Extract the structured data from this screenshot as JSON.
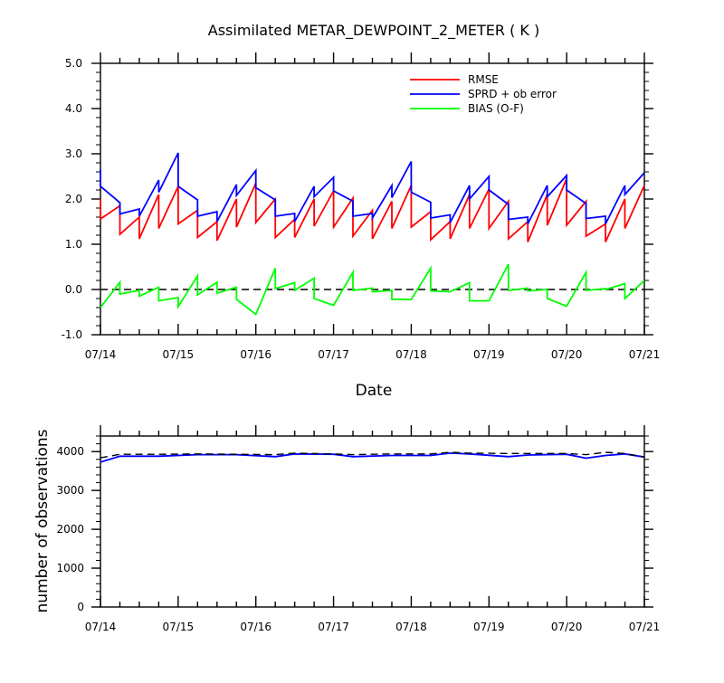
{
  "chart_data": [
    {
      "type": "line",
      "title": "Assimilated METAR_DEWPOINT_2_METER ( K )",
      "xlabel": "Date",
      "ylabel": "",
      "xlim": [
        "07/14 00",
        "07/21 00"
      ],
      "ylim": [
        -1.0,
        5.0
      ],
      "x_tick_labels": [
        "07/14",
        "07/15",
        "07/16",
        "07/17",
        "07/18",
        "07/19",
        "07/20",
        "07/21"
      ],
      "y_tick_labels": [
        "-1.0",
        "0.0",
        "1.0",
        "2.0",
        "3.0",
        "4.0",
        "5.0"
      ],
      "y_ticks": [
        -1,
        0,
        1,
        2,
        3,
        4,
        5
      ],
      "grid": false,
      "zero_line": {
        "value": 0,
        "style": "dashed",
        "color": "#000000"
      },
      "legend": {
        "placement": "top-right"
      },
      "x_hours_note": "sawtooth analysis cycles every 6 hours",
      "series": [
        {
          "name": "RMSE",
          "color": "#ff0000",
          "points": [
            [
              "07/14 00",
              2.0
            ],
            [
              "07/14 00",
              1.56
            ],
            [
              "07/14 06",
              1.85
            ],
            [
              "07/14 06",
              1.22
            ],
            [
              "07/14 12",
              1.6
            ],
            [
              "07/14 12",
              1.12
            ],
            [
              "07/14 18",
              2.1
            ],
            [
              "07/14 18",
              1.35
            ],
            [
              "07/15 00",
              2.28
            ],
            [
              "07/15 00",
              1.45
            ],
            [
              "07/15 06",
              1.75
            ],
            [
              "07/15 06",
              1.15
            ],
            [
              "07/15 12",
              1.5
            ],
            [
              "07/15 12",
              1.08
            ],
            [
              "07/15 18",
              2.0
            ],
            [
              "07/15 18",
              1.38
            ],
            [
              "07/16 00",
              2.35
            ],
            [
              "07/16 00",
              1.48
            ],
            [
              "07/16 06",
              2.0
            ],
            [
              "07/16 06",
              1.15
            ],
            [
              "07/16 12",
              1.55
            ],
            [
              "07/16 12",
              1.15
            ],
            [
              "07/16 18",
              2.0
            ],
            [
              "07/16 18",
              1.4
            ],
            [
              "07/17 00",
              2.18
            ],
            [
              "07/17 00",
              1.38
            ],
            [
              "07/17 06",
              2.02
            ],
            [
              "07/17 06",
              1.18
            ],
            [
              "07/17 12",
              1.75
            ],
            [
              "07/17 12",
              1.12
            ],
            [
              "07/17 18",
              1.95
            ],
            [
              "07/17 18",
              1.35
            ],
            [
              "07/18 00",
              2.3
            ],
            [
              "07/18 00",
              1.38
            ],
            [
              "07/18 06",
              1.72
            ],
            [
              "07/18 06",
              1.1
            ],
            [
              "07/18 12",
              1.5
            ],
            [
              "07/18 12",
              1.12
            ],
            [
              "07/18 18",
              2.1
            ],
            [
              "07/18 18",
              1.35
            ],
            [
              "07/19 00",
              2.22
            ],
            [
              "07/19 00",
              1.35
            ],
            [
              "07/19 06",
              1.95
            ],
            [
              "07/19 06",
              1.12
            ],
            [
              "07/19 12",
              1.5
            ],
            [
              "07/19 12",
              1.05
            ],
            [
              "07/19 18",
              2.1
            ],
            [
              "07/19 18",
              1.42
            ],
            [
              "07/20 00",
              2.45
            ],
            [
              "07/20 00",
              1.42
            ],
            [
              "07/20 06",
              1.95
            ],
            [
              "07/20 06",
              1.18
            ],
            [
              "07/20 12",
              1.45
            ],
            [
              "07/20 12",
              1.05
            ],
            [
              "07/20 18",
              2.0
            ],
            [
              "07/20 18",
              1.35
            ],
            [
              "07/21 00",
              2.3
            ]
          ]
        },
        {
          "name": "SPRD + ob error",
          "color": "#0000ff",
          "points": [
            [
              "07/14 00",
              2.65
            ],
            [
              "07/14 00",
              2.28
            ],
            [
              "07/14 06",
              1.92
            ],
            [
              "07/14 06",
              1.67
            ],
            [
              "07/14 12",
              1.78
            ],
            [
              "07/14 12",
              1.62
            ],
            [
              "07/14 18",
              2.42
            ],
            [
              "07/14 18",
              2.15
            ],
            [
              "07/15 00",
              3.02
            ],
            [
              "07/15 00",
              2.28
            ],
            [
              "07/15 06",
              1.98
            ],
            [
              "07/15 06",
              1.62
            ],
            [
              "07/15 12",
              1.72
            ],
            [
              "07/15 12",
              1.5
            ],
            [
              "07/15 18",
              2.32
            ],
            [
              "07/15 18",
              2.08
            ],
            [
              "07/16 00",
              2.63
            ],
            [
              "07/16 00",
              2.25
            ],
            [
              "07/16 06",
              1.98
            ],
            [
              "07/16 06",
              1.62
            ],
            [
              "07/16 12",
              1.68
            ],
            [
              "07/16 12",
              1.5
            ],
            [
              "07/16 18",
              2.28
            ],
            [
              "07/16 18",
              2.05
            ],
            [
              "07/17 00",
              2.48
            ],
            [
              "07/17 00",
              2.18
            ],
            [
              "07/17 06",
              1.95
            ],
            [
              "07/17 06",
              1.62
            ],
            [
              "07/17 12",
              1.68
            ],
            [
              "07/17 12",
              1.58
            ],
            [
              "07/17 18",
              2.3
            ],
            [
              "07/17 18",
              2.03
            ],
            [
              "07/18 00",
              2.83
            ],
            [
              "07/18 00",
              2.15
            ],
            [
              "07/18 06",
              1.93
            ],
            [
              "07/18 06",
              1.58
            ],
            [
              "07/18 12",
              1.65
            ],
            [
              "07/18 12",
              1.48
            ],
            [
              "07/18 18",
              2.3
            ],
            [
              "07/18 18",
              2.0
            ],
            [
              "07/19 00",
              2.5
            ],
            [
              "07/19 00",
              2.2
            ],
            [
              "07/19 06",
              1.88
            ],
            [
              "07/19 06",
              1.55
            ],
            [
              "07/19 12",
              1.6
            ],
            [
              "07/19 12",
              1.45
            ],
            [
              "07/19 18",
              2.3
            ],
            [
              "07/19 18",
              2.05
            ],
            [
              "07/20 00",
              2.52
            ],
            [
              "07/20 00",
              2.2
            ],
            [
              "07/20 06",
              1.9
            ],
            [
              "07/20 06",
              1.57
            ],
            [
              "07/20 12",
              1.62
            ],
            [
              "07/20 12",
              1.45
            ],
            [
              "07/20 18",
              2.3
            ],
            [
              "07/20 18",
              2.1
            ],
            [
              "07/21 00",
              2.58
            ]
          ]
        },
        {
          "name": "BIAS (O-F)",
          "color": "#00ff00",
          "points": [
            [
              "07/14 00",
              -0.4
            ],
            [
              "07/14 06",
              0.16
            ],
            [
              "07/14 06",
              -0.1
            ],
            [
              "07/14 12",
              -0.02
            ],
            [
              "07/14 12",
              -0.15
            ],
            [
              "07/14 18",
              0.05
            ],
            [
              "07/14 18",
              -0.25
            ],
            [
              "07/15 00",
              -0.18
            ],
            [
              "07/15 00",
              -0.38
            ],
            [
              "07/15 06",
              0.3
            ],
            [
              "07/15 06",
              -0.12
            ],
            [
              "07/15 12",
              0.16
            ],
            [
              "07/15 12",
              -0.08
            ],
            [
              "07/15 18",
              0.05
            ],
            [
              "07/15 18",
              -0.22
            ],
            [
              "07/16 00",
              -0.55
            ],
            [
              "07/16 06",
              0.47
            ],
            [
              "07/16 06",
              0.02
            ],
            [
              "07/16 12",
              0.15
            ],
            [
              "07/16 12",
              -0.02
            ],
            [
              "07/16 18",
              0.25
            ],
            [
              "07/16 18",
              -0.2
            ],
            [
              "07/17 00",
              -0.35
            ],
            [
              "07/17 06",
              0.38
            ],
            [
              "07/17 06",
              -0.02
            ],
            [
              "07/17 12",
              0.03
            ],
            [
              "07/17 12",
              -0.05
            ],
            [
              "07/17 18",
              -0.02
            ],
            [
              "07/17 18",
              -0.22
            ],
            [
              "07/18 00",
              -0.22
            ],
            [
              "07/18 06",
              0.47
            ],
            [
              "07/18 06",
              -0.03
            ],
            [
              "07/18 12",
              -0.05
            ],
            [
              "07/18 12",
              -0.05
            ],
            [
              "07/18 18",
              0.15
            ],
            [
              "07/18 18",
              -0.25
            ],
            [
              "07/19 00",
              -0.25
            ],
            [
              "07/19 06",
              0.56
            ],
            [
              "07/19 06",
              -0.02
            ],
            [
              "07/19 12",
              0.03
            ],
            [
              "07/19 12",
              -0.03
            ],
            [
              "07/19 18",
              0.0
            ],
            [
              "07/19 18",
              -0.2
            ],
            [
              "07/20 00",
              -0.37
            ],
            [
              "07/20 06",
              0.38
            ],
            [
              "07/20 06",
              -0.02
            ],
            [
              "07/20 12",
              0.02
            ],
            [
              "07/20 12",
              0.0
            ],
            [
              "07/20 18",
              0.13
            ],
            [
              "07/20 18",
              -0.2
            ],
            [
              "07/21 00",
              0.2
            ]
          ]
        }
      ]
    },
    {
      "type": "line",
      "title": "",
      "xlabel": "",
      "ylabel": "number of observations",
      "xlim": [
        "07/14 00",
        "07/21 00"
      ],
      "ylim": [
        0,
        4400
      ],
      "x_tick_labels": [
        "07/14",
        "07/15",
        "07/16",
        "07/17",
        "07/18",
        "07/19",
        "07/20",
        "07/21"
      ],
      "y_tick_labels": [
        "0",
        "1000",
        "2000",
        "3000",
        "4000"
      ],
      "y_ticks": [
        0,
        1000,
        2000,
        3000,
        4000
      ],
      "grid": false,
      "series": [
        {
          "color": "#0000ff",
          "style": "solid",
          "points": [
            [
              "07/14 00",
              3730
            ],
            [
              "07/14 06",
              3880
            ],
            [
              "07/14 18",
              3880
            ],
            [
              "07/15 06",
              3920
            ],
            [
              "07/15 18",
              3920
            ],
            [
              "07/16 06",
              3870
            ],
            [
              "07/16 12",
              3940
            ],
            [
              "07/17 00",
              3930
            ],
            [
              "07/17 06",
              3870
            ],
            [
              "07/17 18",
              3900
            ],
            [
              "07/18 06",
              3900
            ],
            [
              "07/18 12",
              3960
            ],
            [
              "07/18 18",
              3940
            ],
            [
              "07/19 06",
              3870
            ],
            [
              "07/19 12",
              3910
            ],
            [
              "07/20 00",
              3930
            ],
            [
              "07/20 06",
              3830
            ],
            [
              "07/20 12",
              3900
            ],
            [
              "07/20 18",
              3940
            ],
            [
              "07/21 00",
              3860
            ]
          ]
        },
        {
          "color": "#000000",
          "style": "dashed",
          "points": [
            [
              "07/14 00",
              3840
            ],
            [
              "07/14 06",
              3930
            ],
            [
              "07/14 18",
              3930
            ],
            [
              "07/15 06",
              3940
            ],
            [
              "07/15 18",
              3930
            ],
            [
              "07/16 06",
              3920
            ],
            [
              "07/16 12",
              3960
            ],
            [
              "07/17 00",
              3940
            ],
            [
              "07/17 06",
              3920
            ],
            [
              "07/17 18",
              3940
            ],
            [
              "07/18 06",
              3940
            ],
            [
              "07/18 12",
              3980
            ],
            [
              "07/18 18",
              3960
            ],
            [
              "07/19 06",
              3950
            ],
            [
              "07/19 12",
              3950
            ],
            [
              "07/20 00",
              3950
            ],
            [
              "07/20 06",
              3920
            ],
            [
              "07/20 12",
              3980
            ],
            [
              "07/20 18",
              3950
            ],
            [
              "07/21 00",
              3860
            ]
          ]
        }
      ]
    }
  ]
}
